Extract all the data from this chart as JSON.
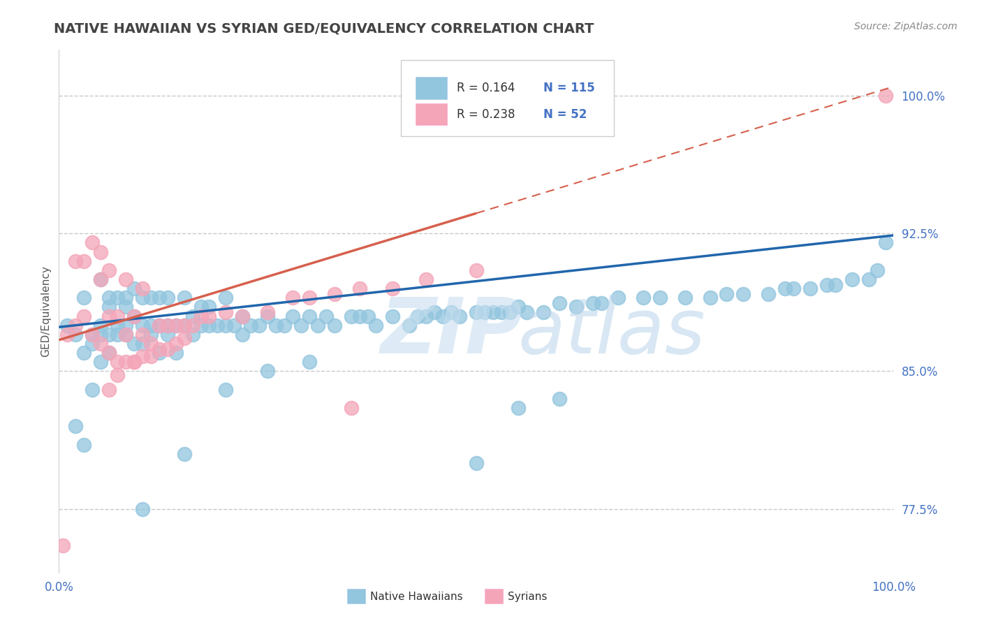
{
  "title": "NATIVE HAWAIIAN VS SYRIAN GED/EQUIVALENCY CORRELATION CHART",
  "source": "Source: ZipAtlas.com",
  "ylabel": "GED/Equivalency",
  "xlim": [
    0.0,
    1.0
  ],
  "ylim": [
    0.74,
    1.025
  ],
  "yticks": [
    0.775,
    0.85,
    0.925,
    1.0
  ],
  "ytick_labels": [
    "77.5%",
    "85.0%",
    "92.5%",
    "100.0%"
  ],
  "xticks": [
    0.0,
    1.0
  ],
  "xtick_labels": [
    "0.0%",
    "100.0%"
  ],
  "blue_color": "#92c5de",
  "pink_color": "#f4a5b8",
  "blue_line_color": "#2166ac",
  "pink_line_color": "#d6604d",
  "grid_color": "#cccccc",
  "title_color": "#444444",
  "tick_color": "#4472c4",
  "legend_R_blue": "0.164",
  "legend_N_blue": "115",
  "legend_R_pink": "0.238",
  "legend_N_pink": "52",
  "blue_scatter_x": [
    0.01,
    0.02,
    0.02,
    0.03,
    0.03,
    0.03,
    0.04,
    0.04,
    0.04,
    0.05,
    0.05,
    0.05,
    0.05,
    0.06,
    0.06,
    0.06,
    0.06,
    0.07,
    0.07,
    0.07,
    0.08,
    0.08,
    0.08,
    0.08,
    0.09,
    0.09,
    0.09,
    0.1,
    0.1,
    0.1,
    0.11,
    0.11,
    0.11,
    0.12,
    0.12,
    0.12,
    0.13,
    0.13,
    0.13,
    0.14,
    0.14,
    0.15,
    0.15,
    0.16,
    0.16,
    0.17,
    0.17,
    0.18,
    0.18,
    0.19,
    0.2,
    0.2,
    0.21,
    0.22,
    0.22,
    0.23,
    0.24,
    0.25,
    0.26,
    0.27,
    0.28,
    0.29,
    0.3,
    0.31,
    0.32,
    0.33,
    0.35,
    0.36,
    0.37,
    0.38,
    0.4,
    0.42,
    0.43,
    0.44,
    0.45,
    0.46,
    0.47,
    0.48,
    0.5,
    0.51,
    0.52,
    0.53,
    0.54,
    0.55,
    0.56,
    0.58,
    0.6,
    0.62,
    0.64,
    0.65,
    0.67,
    0.7,
    0.72,
    0.75,
    0.78,
    0.8,
    0.82,
    0.85,
    0.87,
    0.88,
    0.9,
    0.92,
    0.93,
    0.95,
    0.97,
    0.98,
    0.99,
    0.5,
    0.55,
    0.6,
    0.1,
    0.15,
    0.2,
    0.25,
    0.3
  ],
  "blue_scatter_y": [
    0.875,
    0.87,
    0.82,
    0.86,
    0.89,
    0.81,
    0.87,
    0.84,
    0.865,
    0.875,
    0.9,
    0.87,
    0.855,
    0.885,
    0.87,
    0.89,
    0.86,
    0.875,
    0.89,
    0.87,
    0.875,
    0.885,
    0.87,
    0.89,
    0.865,
    0.88,
    0.895,
    0.875,
    0.865,
    0.89,
    0.875,
    0.89,
    0.87,
    0.875,
    0.89,
    0.86,
    0.875,
    0.89,
    0.87,
    0.875,
    0.86,
    0.875,
    0.89,
    0.87,
    0.88,
    0.875,
    0.885,
    0.875,
    0.885,
    0.875,
    0.875,
    0.89,
    0.875,
    0.88,
    0.87,
    0.875,
    0.875,
    0.88,
    0.875,
    0.875,
    0.88,
    0.875,
    0.88,
    0.875,
    0.88,
    0.875,
    0.88,
    0.88,
    0.88,
    0.875,
    0.88,
    0.875,
    0.88,
    0.88,
    0.882,
    0.88,
    0.882,
    0.88,
    0.882,
    0.882,
    0.882,
    0.882,
    0.882,
    0.885,
    0.882,
    0.882,
    0.887,
    0.885,
    0.887,
    0.887,
    0.89,
    0.89,
    0.89,
    0.89,
    0.89,
    0.892,
    0.892,
    0.892,
    0.895,
    0.895,
    0.895,
    0.897,
    0.897,
    0.9,
    0.9,
    0.905,
    0.92,
    0.8,
    0.83,
    0.835,
    0.775,
    0.805,
    0.84,
    0.85,
    0.855
  ],
  "pink_scatter_x": [
    0.005,
    0.01,
    0.02,
    0.02,
    0.03,
    0.03,
    0.04,
    0.04,
    0.05,
    0.05,
    0.05,
    0.06,
    0.06,
    0.06,
    0.07,
    0.07,
    0.08,
    0.08,
    0.09,
    0.09,
    0.1,
    0.1,
    0.11,
    0.12,
    0.13,
    0.14,
    0.15,
    0.16,
    0.17,
    0.18,
    0.2,
    0.22,
    0.25,
    0.28,
    0.3,
    0.33,
    0.36,
    0.4,
    0.44,
    0.5,
    0.06,
    0.07,
    0.08,
    0.09,
    0.1,
    0.11,
    0.12,
    0.13,
    0.14,
    0.15,
    0.35,
    0.99
  ],
  "pink_scatter_y": [
    0.755,
    0.87,
    0.875,
    0.91,
    0.88,
    0.91,
    0.87,
    0.92,
    0.865,
    0.9,
    0.915,
    0.86,
    0.88,
    0.905,
    0.855,
    0.88,
    0.87,
    0.9,
    0.855,
    0.88,
    0.87,
    0.895,
    0.865,
    0.875,
    0.875,
    0.875,
    0.875,
    0.875,
    0.88,
    0.88,
    0.882,
    0.88,
    0.882,
    0.89,
    0.89,
    0.892,
    0.895,
    0.895,
    0.9,
    0.905,
    0.84,
    0.848,
    0.855,
    0.855,
    0.858,
    0.858,
    0.862,
    0.862,
    0.865,
    0.868,
    0.83,
    1.0
  ],
  "background_color": "#ffffff"
}
